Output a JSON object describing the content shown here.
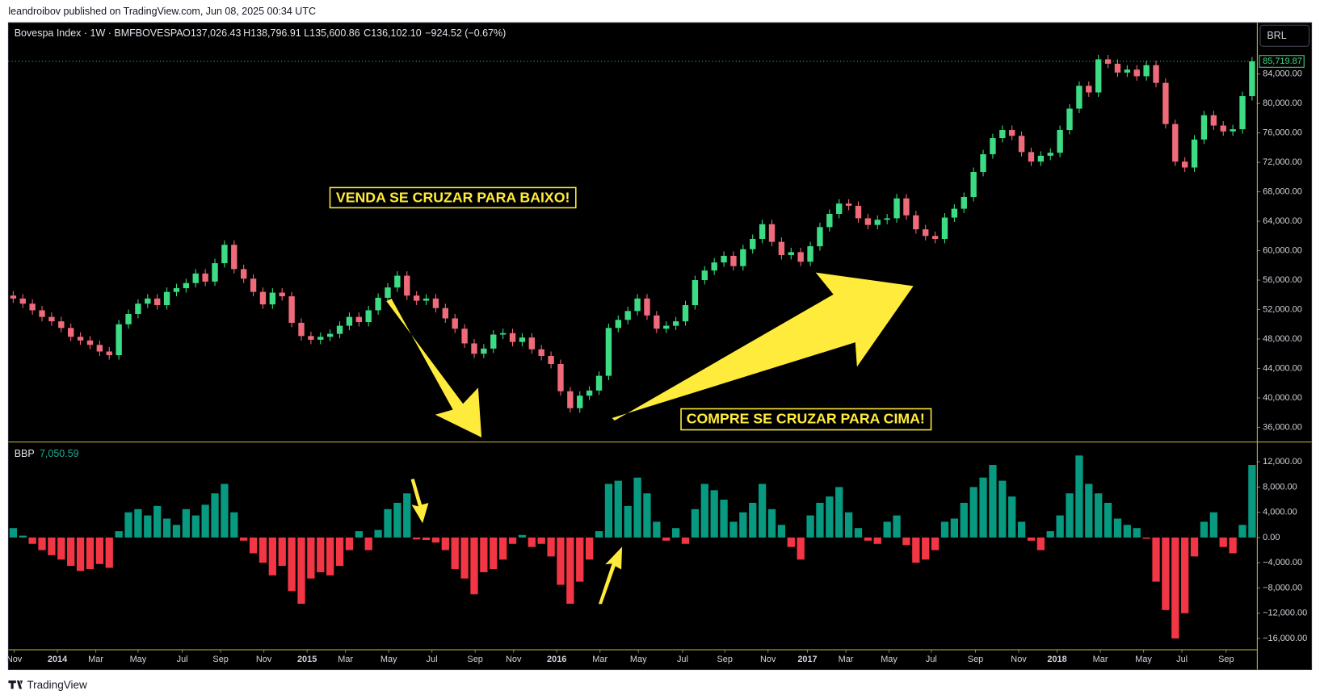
{
  "header": {
    "publisher": "leandroibov published on TradingView.com, Jun 08, 2025 00:34 UTC",
    "currency": "BRL",
    "brand": "TradingView"
  },
  "chart_data": [
    {
      "type": "candlestick",
      "title": "Bovespa Index · 1W · BMFBOVESPA",
      "ohlc_labels": [
        "O137,026.43",
        "H138,796.91",
        "L135,600.86",
        "C136,102.10",
        "−924.52 (−0.67%)"
      ],
      "annotations": [
        "VENDA SE CRUZAR PARA BAIXO!",
        "COMPRE SE CRUZAR PARA CIMA!"
      ],
      "up_color": "#3ddc84",
      "down_color": "#f06b7a",
      "grid": false,
      "xlim": [
        -0.5,
        129.5
      ],
      "ylim": [
        34060,
        90970
      ],
      "yticks": [
        {
          "value": 36000,
          "label": "36,000.00"
        },
        {
          "value": 40000,
          "label": "40,000.00"
        },
        {
          "value": 44000,
          "label": "44,000.00"
        },
        {
          "value": 48000,
          "label": "48,000.00"
        },
        {
          "value": 52000,
          "label": "52,000.00"
        },
        {
          "value": 56000,
          "label": "56,000.00"
        },
        {
          "value": 60000,
          "label": "60,000.00"
        },
        {
          "value": 64000,
          "label": "64,000.00"
        },
        {
          "value": 68000,
          "label": "68,000.00"
        },
        {
          "value": 72000,
          "label": "72,000.00"
        },
        {
          "value": 76000,
          "label": "76,000.00"
        },
        {
          "value": 80000,
          "label": "80,000.00"
        },
        {
          "value": 84000,
          "label": "84,000.00"
        }
      ],
      "last_price": {
        "value": 85719.87,
        "label": "85,719.87"
      },
      "open": [
        53900,
        53500,
        52800,
        51900,
        51000,
        50400,
        49500,
        48300,
        47800,
        47200,
        46300,
        45800,
        50000,
        51400,
        52800,
        53500,
        52600,
        54400,
        54900,
        55600,
        56900,
        55800,
        58300,
        60800,
        57500,
        56200,
        54400,
        52700,
        54300,
        53800,
        50200,
        48400,
        47900,
        48300,
        48700,
        49800,
        51000,
        50300,
        51900,
        53600,
        55000,
        56600,
        53900,
        53200,
        53500,
        52200,
        50800,
        49400,
        47400,
        46000,
        46700,
        48600,
        48800,
        47600,
        48200,
        46600,
        45700,
        44600,
        40900,
        38600,
        40300,
        41000,
        43000,
        49500,
        50600,
        51800,
        53500,
        51200,
        49400,
        49800,
        50400,
        52600,
        56000,
        57300,
        58400,
        59300,
        57900,
        60200,
        61600,
        63600,
        61200,
        59400,
        59800,
        58500,
        60600,
        63200,
        65000,
        66400,
        66100,
        64400,
        63500,
        64200,
        64400,
        67100,
        64800,
        62900,
        62000,
        61600,
        64500,
        65700,
        67300,
        70700,
        73100,
        75300,
        76400,
        75600,
        73400,
        72100,
        72900,
        73300,
        76400,
        79300,
        82400,
        81500,
        86000,
        85400,
        84200,
        84600,
        83700,
        85200,
        82800,
        77200,
        72100,
        71300,
        75100,
        78400,
        77000,
        76200,
        76500,
        81000
      ],
      "high": [
        54500,
        54100,
        53400,
        52500,
        51600,
        51000,
        50100,
        48900,
        48400,
        47800,
        46900,
        50600,
        52000,
        53400,
        54100,
        54100,
        55000,
        55500,
        56200,
        57500,
        57500,
        58900,
        61400,
        61400,
        58100,
        56800,
        55000,
        54900,
        54900,
        54400,
        50800,
        49000,
        48900,
        49300,
        50400,
        51600,
        51600,
        52500,
        54200,
        55600,
        57200,
        57200,
        54500,
        54100,
        54100,
        52800,
        51400,
        50000,
        48000,
        47300,
        49200,
        49400,
        49400,
        48800,
        48800,
        47200,
        46300,
        45200,
        41500,
        40900,
        41600,
        43600,
        50100,
        51200,
        52400,
        54100,
        54100,
        51800,
        50400,
        51000,
        53200,
        56600,
        57900,
        59000,
        59900,
        59900,
        60800,
        62200,
        64200,
        64200,
        61800,
        60400,
        60400,
        61200,
        63800,
        65600,
        67000,
        67000,
        66700,
        65000,
        64800,
        65000,
        67700,
        67700,
        65400,
        63500,
        62600,
        65100,
        66300,
        67900,
        71300,
        73700,
        75900,
        77000,
        77000,
        76200,
        74000,
        73500,
        73900,
        77000,
        79900,
        83000,
        83000,
        86600,
        86600,
        86000,
        85200,
        85200,
        85800,
        85800,
        83400,
        77800,
        72700,
        75700,
        79000,
        79000,
        77600,
        77100,
        81600,
        86320
      ],
      "low": [
        52900,
        52200,
        51300,
        50400,
        49800,
        48900,
        47700,
        47200,
        46600,
        45700,
        45200,
        45200,
        49400,
        50800,
        52200,
        52000,
        52000,
        53800,
        54300,
        55000,
        55200,
        55200,
        57700,
        56900,
        55600,
        53800,
        52100,
        52100,
        53200,
        49600,
        47800,
        47300,
        47300,
        47700,
        48100,
        49200,
        49700,
        49700,
        51300,
        53000,
        54400,
        53300,
        52600,
        52600,
        51600,
        50200,
        48800,
        46800,
        45400,
        45400,
        46100,
        48000,
        47000,
        47000,
        46000,
        45100,
        44000,
        40300,
        38000,
        38000,
        39700,
        40400,
        42400,
        48900,
        50000,
        51200,
        50600,
        48800,
        48800,
        49200,
        49800,
        52000,
        55400,
        56700,
        57800,
        57300,
        57300,
        59600,
        61000,
        60600,
        58800,
        58800,
        57900,
        57900,
        60000,
        62600,
        64400,
        65500,
        63800,
        62900,
        62900,
        63600,
        63800,
        64200,
        62300,
        61400,
        61000,
        61000,
        63900,
        65100,
        66700,
        70100,
        72500,
        74700,
        75000,
        72800,
        71500,
        71500,
        72300,
        72700,
        75800,
        78700,
        80900,
        80900,
        84800,
        83600,
        83600,
        83100,
        83100,
        82200,
        76600,
        71500,
        70700,
        70700,
        74500,
        76400,
        75600,
        75600,
        75900,
        80400
      ],
      "close": [
        53500,
        52800,
        51900,
        51000,
        50400,
        49500,
        48300,
        47800,
        47200,
        46300,
        45800,
        50000,
        51400,
        52800,
        53500,
        52600,
        54400,
        54900,
        55600,
        56900,
        55800,
        58300,
        60800,
        57500,
        56200,
        54400,
        52700,
        54300,
        53800,
        50200,
        48400,
        47900,
        48300,
        48700,
        49800,
        51000,
        50300,
        51900,
        53600,
        55000,
        56600,
        53900,
        53200,
        53500,
        52200,
        50800,
        49400,
        47400,
        46000,
        46700,
        48600,
        48800,
        47600,
        48200,
        46600,
        45700,
        44600,
        40900,
        38600,
        40300,
        41000,
        43000,
        49500,
        50600,
        51800,
        53500,
        51200,
        49400,
        49800,
        50400,
        52600,
        56000,
        57300,
        58400,
        59300,
        57900,
        60200,
        61600,
        63600,
        61200,
        59400,
        59800,
        58500,
        60600,
        63200,
        65000,
        66400,
        66100,
        64400,
        63500,
        64200,
        64400,
        67100,
        64800,
        62900,
        62000,
        61600,
        64500,
        65700,
        67300,
        70700,
        73100,
        75300,
        76400,
        75600,
        73400,
        72100,
        72900,
        73300,
        76400,
        79300,
        82400,
        81500,
        86000,
        85400,
        84200,
        84600,
        83700,
        85200,
        82800,
        77200,
        72100,
        71300,
        75100,
        78400,
        77000,
        76200,
        76500,
        81000,
        85720
      ]
    },
    {
      "type": "bar",
      "title": "BBP",
      "last_value": {
        "value": 7050.59,
        "label": "7,050.59"
      },
      "up_color": "#089981",
      "down_color": "#f23645",
      "grid": false,
      "xlim": [
        -0.5,
        129.5
      ],
      "ylim": [
        -17730,
        15070
      ],
      "yticks": [
        {
          "value": -16000,
          "label": "−16,000.00"
        },
        {
          "value": -12000,
          "label": "−12,000.00"
        },
        {
          "value": -8000,
          "label": "−8,000.00"
        },
        {
          "value": -4000,
          "label": "−4,000.00"
        },
        {
          "value": 0,
          "label": "0.00"
        },
        {
          "value": 4000,
          "label": "4,000.00"
        },
        {
          "value": 8000,
          "label": "8,000.00"
        },
        {
          "value": 12000,
          "label": "12,000.00"
        }
      ],
      "xticks": [
        {
          "value": 0.1,
          "label": "Nov"
        },
        {
          "value": 4.6,
          "label": "2014"
        },
        {
          "value": 8.6,
          "label": "Mar"
        },
        {
          "value": 13,
          "label": "May"
        },
        {
          "value": 17.6,
          "label": "Jul"
        },
        {
          "value": 21.6,
          "label": "Sep"
        },
        {
          "value": 26.1,
          "label": "Nov"
        },
        {
          "value": 30.6,
          "label": "2015"
        },
        {
          "value": 34.6,
          "label": "Mar"
        },
        {
          "value": 39.1,
          "label": "May"
        },
        {
          "value": 43.6,
          "label": "Jul"
        },
        {
          "value": 48.1,
          "label": "Sep"
        },
        {
          "value": 52.1,
          "label": "Nov"
        },
        {
          "value": 56.6,
          "label": "2016"
        },
        {
          "value": 61.1,
          "label": "Mar"
        },
        {
          "value": 65.1,
          "label": "May"
        },
        {
          "value": 69.7,
          "label": "Jul"
        },
        {
          "value": 74.1,
          "label": "Sep"
        },
        {
          "value": 78.6,
          "label": "Nov"
        },
        {
          "value": 82.7,
          "label": "2017"
        },
        {
          "value": 86.7,
          "label": "Mar"
        },
        {
          "value": 91.2,
          "label": "May"
        },
        {
          "value": 95.6,
          "label": "Jul"
        },
        {
          "value": 100.2,
          "label": "Sep"
        },
        {
          "value": 104.7,
          "label": "Nov"
        },
        {
          "value": 108.7,
          "label": "2018"
        },
        {
          "value": 113.2,
          "label": "Mar"
        },
        {
          "value": 117.7,
          "label": "May"
        },
        {
          "value": 121.7,
          "label": "Jul"
        },
        {
          "value": 126.3,
          "label": "Sep"
        }
      ],
      "values": [
        1500,
        300,
        -1000,
        -2000,
        -2800,
        -3500,
        -4500,
        -5300,
        -5000,
        -4200,
        -4800,
        1000,
        4000,
        4500,
        3500,
        5000,
        3000,
        2000,
        4500,
        3500,
        5200,
        7000,
        8500,
        4000,
        -500,
        -2500,
        -4000,
        -6000,
        -4500,
        -8500,
        -10500,
        -6500,
        -5500,
        -6000,
        -4500,
        -2000,
        1000,
        -2000,
        1200,
        4500,
        5500,
        7000,
        -300,
        -400,
        -800,
        -2000,
        -5000,
        -6500,
        -9000,
        -5500,
        -5000,
        -3500,
        -1000,
        400,
        -1500,
        -1000,
        -3000,
        -7500,
        -10500,
        -7000,
        -3500,
        1000,
        8500,
        9000,
        5000,
        9500,
        7000,
        2500,
        -500,
        1500,
        -1000,
        4500,
        8500,
        7500,
        6000,
        2500,
        4000,
        5500,
        8500,
        4500,
        2000,
        -1500,
        -3500,
        3500,
        5500,
        6500,
        8000,
        4000,
        1500,
        -500,
        -1000,
        2500,
        3500,
        -1200,
        -4000,
        -3500,
        -2000,
        2500,
        3000,
        5500,
        8000,
        9500,
        11500,
        9000,
        6500,
        2500,
        -500,
        -2000,
        1000,
        3500,
        7000,
        13000,
        8500,
        7000,
        5500,
        3000,
        2000,
        1500,
        -200,
        -7000,
        -11500,
        -16000,
        -12000,
        -3000,
        2500,
        4000,
        -1500,
        -2500,
        2000,
        11500
      ]
    }
  ]
}
